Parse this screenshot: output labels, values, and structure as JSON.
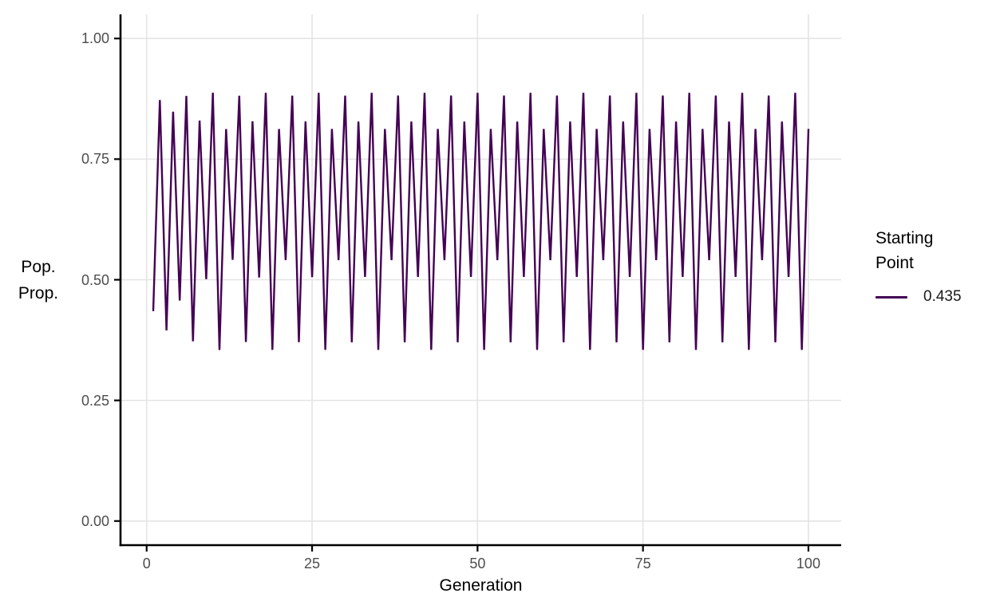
{
  "colors": {
    "background": "#FFFFFF",
    "series_line": "#440154",
    "grid_line": "#E4E4E4",
    "axis_line": "#000000",
    "tick_mark": "#000000",
    "tick_label_text": "#4D4D4D",
    "title_text": "#000000"
  },
  "chart_data": {
    "type": "line",
    "title": "",
    "xlabel": "Generation",
    "ylabel": "Pop. Prop.",
    "ylabel_lines": [
      "Pop.",
      "Prop."
    ],
    "x_ticks": [
      {
        "v": 0,
        "label": "0"
      },
      {
        "v": 25,
        "label": "25"
      },
      {
        "v": 50,
        "label": "50"
      },
      {
        "v": 75,
        "label": "75"
      },
      {
        "v": 100,
        "label": "100"
      }
    ],
    "y_ticks": [
      {
        "v": 0.0,
        "label": "0.00"
      },
      {
        "v": 0.25,
        "label": "0.25"
      },
      {
        "v": 0.5,
        "label": "0.50"
      },
      {
        "v": 0.75,
        "label": "0.75"
      },
      {
        "v": 1.0,
        "label": "1.00"
      }
    ],
    "xlim": [
      -3.95,
      104.95
    ],
    "ylim": [
      -0.05,
      1.05
    ],
    "grid": {
      "major": true,
      "minor": false
    },
    "legend": {
      "position": "right",
      "title_lines": [
        "Starting",
        "Point"
      ],
      "entries": [
        {
          "label": "0.435",
          "color": "#440154"
        }
      ]
    },
    "series": [
      {
        "name": "0.435",
        "color": "#440154",
        "x_start": 1,
        "x_step": 1,
        "y": [
          0.435,
          0.8725,
          0.3949,
          0.8483,
          0.4568,
          0.8809,
          0.3725,
          0.8298,
          0.5014,
          0.8875,
          0.3545,
          0.8123,
          0.5412,
          0.8815,
          0.3709,
          0.8284,
          0.5047,
          0.8874,
          0.3547,
          0.8125,
          0.5408,
          0.8816,
          0.3706,
          0.828,
          0.5055,
          0.8874,
          0.3547,
          0.8126,
          0.5406,
          0.8816,
          0.3704,
          0.8279,
          0.5058,
          0.8874,
          0.3548,
          0.8126,
          0.5405,
          0.8817,
          0.3704,
          0.8279,
          0.5059,
          0.8874,
          0.3548,
          0.8126,
          0.5405,
          0.8817,
          0.3703,
          0.8278,
          0.506,
          0.8874,
          0.3548,
          0.8127,
          0.5405,
          0.8817,
          0.3703,
          0.8278,
          0.506,
          0.8874,
          0.3548,
          0.8127,
          0.5405,
          0.8817,
          0.3703,
          0.8278,
          0.506,
          0.8874,
          0.3548,
          0.8127,
          0.5405,
          0.8817,
          0.3703,
          0.8278,
          0.506,
          0.8874,
          0.3548,
          0.8127,
          0.5405,
          0.8817,
          0.3703,
          0.8278,
          0.506,
          0.8874,
          0.3548,
          0.8127,
          0.5405,
          0.8817,
          0.3703,
          0.8278,
          0.506,
          0.8874,
          0.3548,
          0.8127,
          0.5405,
          0.8817,
          0.3703,
          0.8278,
          0.506,
          0.8874,
          0.3548,
          0.8127
        ]
      }
    ]
  }
}
